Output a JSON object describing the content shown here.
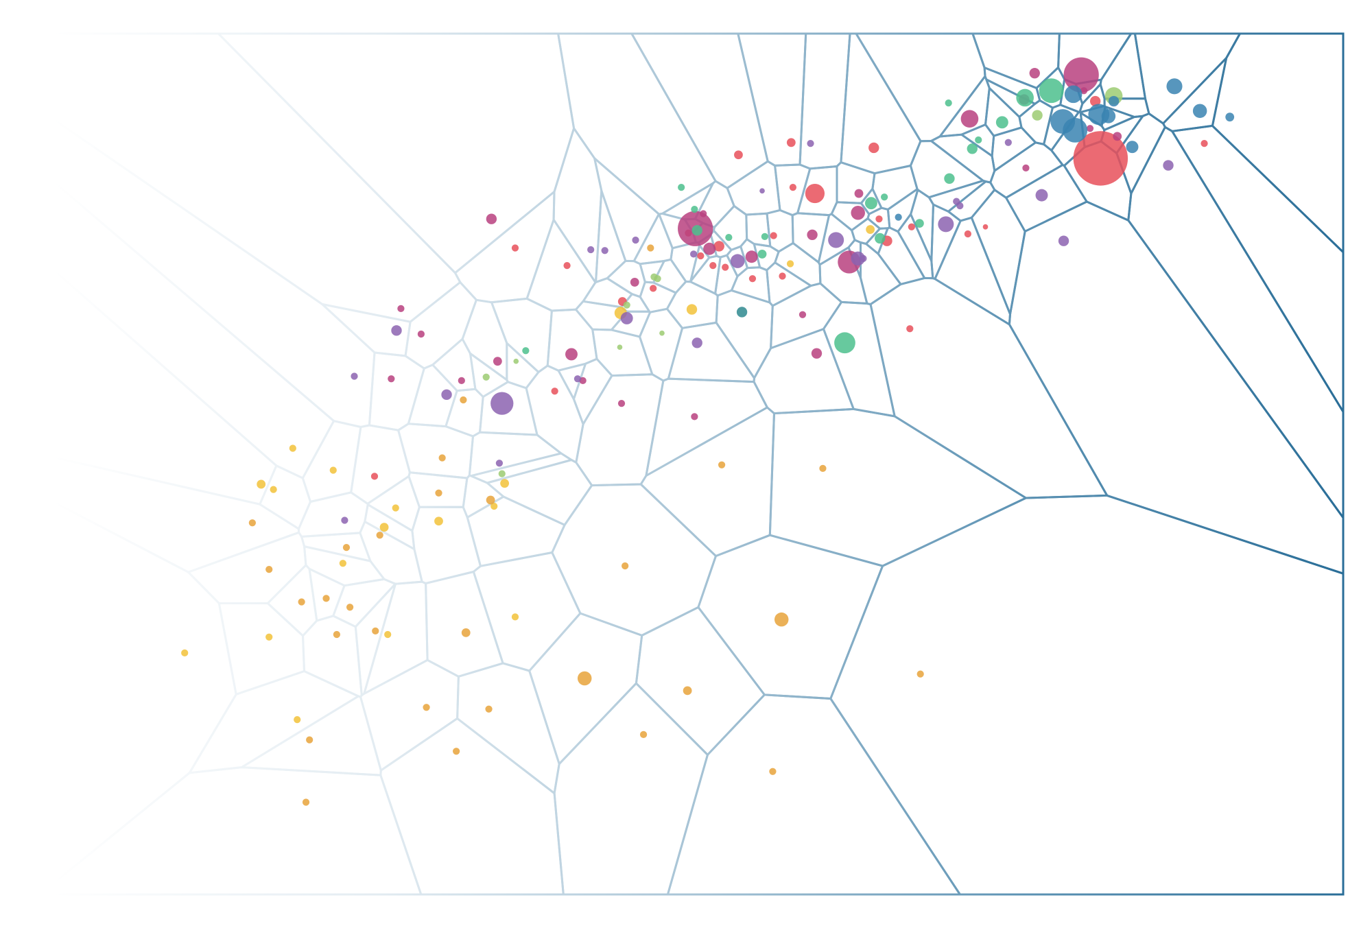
{
  "chart_data": {
    "type": "voronoi",
    "xlim": [
      0,
      1468
    ],
    "ylim": [
      0,
      980
    ],
    "series": [
      {
        "color": "#f2c23a",
        "x": [
          150,
          273,
          237,
          251,
          319,
          246,
          278,
          381,
          330,
          377,
          390,
          439,
          502,
          514,
          526,
          646,
          727,
          839,
          930
        ],
        "y": [
          275,
          508,
          467,
          461,
          483,
          293,
          199,
          296,
          377,
          418,
          440,
          425,
          442,
          468,
          316,
          662,
          666,
          718,
          757
        ],
        "sizes": [
          4,
          4,
          5,
          4,
          4,
          4,
          4,
          4,
          4,
          5,
          4,
          5,
          4,
          5,
          4,
          7,
          6,
          4,
          5
        ]
      },
      {
        "color": "#e8a33b",
        "x": [
          227,
          246,
          283,
          311,
          338,
          323,
          292,
          288,
          367,
          334,
          372,
          443,
          439,
          498,
          470,
          425,
          496,
          459,
          605,
          651,
          722,
          672,
          829,
          819,
          987,
          761,
          876,
          467,
          680
        ],
        "y": [
          423,
          370,
          333,
          337,
          327,
          296,
          176,
          105,
          300,
          395,
          409,
          497,
          457,
          449,
          298,
          213,
          211,
          163,
          246,
          374,
          232,
          182,
          313,
          140,
          251,
          489,
          485,
          563,
          736
        ],
        "sizes": [
          4,
          4,
          4,
          4,
          4,
          4,
          4,
          4,
          4,
          4,
          4,
          4,
          4,
          5,
          5,
          4,
          4,
          4,
          8,
          4,
          5,
          4,
          8,
          4,
          4,
          4,
          4,
          4,
          4
        ]
      },
      {
        "color": "#e8505b",
        "x": [
          366,
          526,
          571,
          585,
          683,
          648,
          723,
          758,
          737,
          751,
          765,
          820,
          796,
          830,
          780,
          840,
          842,
          867,
          934,
          940,
          949,
          977,
          975,
          1041,
          1061,
          1186,
          1192,
          1310
        ],
        "y": [
          476,
          736,
          573,
          716,
          690,
          675,
          753,
          738,
          727,
          716,
          714,
          750,
          701,
          704,
          842,
          856,
          805,
          798,
          850,
          769,
          744,
          760,
          644,
          752,
          760,
          903,
          838,
          855
        ],
        "sizes": [
          4,
          4,
          4,
          4,
          4,
          5,
          4,
          6,
          4,
          4,
          4,
          4,
          4,
          4,
          5,
          5,
          4,
          11,
          6,
          4,
          6,
          4,
          4,
          4,
          3,
          6,
          31,
          4
        ]
      },
      {
        "color": "#b8417f",
        "x": [
          385,
          396,
          419,
          465,
          506,
          499,
          590,
          603,
          647,
          730,
          662,
          740,
          731,
          747,
          795,
          853,
          869,
          864,
          906,
          917,
          916,
          1043,
          1107,
          1117,
          1105,
          1170,
          1173,
          1180,
          1211
        ],
        "y": [
          587,
          667,
          638,
          585,
          607,
          769,
          615,
          585,
          559,
          544,
          697,
          775,
          758,
          735,
          726,
          660,
          616,
          751,
          720,
          798,
          776,
          883,
          827,
          935,
          905,
          933,
          915,
          872,
          863
        ],
        "sizes": [
          4,
          4,
          4,
          4,
          5,
          6,
          7,
          4,
          4,
          4,
          5,
          4,
          20,
          7,
          7,
          4,
          6,
          6,
          13,
          5,
          8,
          10,
          4,
          6,
          6,
          20,
          4,
          4,
          5
        ]
      },
      {
        "color": "#8c63b0",
        "x": [
          332,
          508,
          343,
          391,
          448,
          511,
          597,
          733,
          612,
          628,
          663,
          653,
          729,
          779,
          807,
          862,
          891,
          916,
          922,
          1016,
          1028,
          1032,
          1087,
          1125,
          1150,
          1269
        ],
        "y": [
          426,
          491,
          590,
          642,
          569,
          559,
          587,
          628,
          734,
          733,
          745,
          656,
          729,
          721,
          801,
          855,
          745,
          724,
          724,
          763,
          789,
          784,
          856,
          796,
          744,
          830
        ],
        "sizes": [
          4,
          4,
          4,
          6,
          6,
          13,
          4,
          6,
          4,
          4,
          4,
          7,
          4,
          8,
          3,
          4,
          9,
          8,
          4,
          9,
          4,
          4,
          4,
          7,
          6,
          6
        ]
      },
      {
        "color": "#4cbf8d",
        "x": [
          538,
          715,
          730,
          733,
          769,
          807,
          810,
          901,
          931,
          946,
          941,
          986,
          1020,
          1019,
          1053,
          1046,
          1080,
          1106,
          1136
        ],
        "y": [
          619,
          805,
          780,
          756,
          748,
          729,
          749,
          628,
          787,
          794,
          747,
          764,
          815,
          901,
          859,
          849,
          879,
          907,
          915
        ],
        "sizes": [
          4,
          4,
          4,
          6,
          4,
          5,
          4,
          12,
          7,
          4,
          6,
          5,
          6,
          4,
          4,
          6,
          7,
          10,
          14
        ]
      },
      {
        "color": "#9ccb72",
        "x": [
          511,
          493,
          527,
          645,
          693,
          684,
          688,
          653,
          1120,
          1207
        ],
        "y": [
          479,
          589,
          607,
          623,
          639,
          703,
          701,
          671,
          887,
          909
        ],
        "sizes": [
          4,
          4,
          3,
          3,
          3,
          4,
          4,
          4,
          6,
          10
        ]
      },
      {
        "color": "#3a84b1",
        "x": [
          962,
          1161,
          1207,
          1190,
          1201,
          1149,
          1163,
          1228,
          1276,
          1305,
          1339
        ],
        "y": [
          771,
          911,
          903,
          888,
          886,
          880,
          870,
          851,
          920,
          892,
          885
        ],
        "sizes": [
          4,
          10,
          6,
          12,
          8,
          14,
          14,
          7,
          9,
          8,
          5
        ]
      },
      {
        "color": "#2f8a8f",
        "x": [
          784
        ],
        "y": [
          663
        ],
        "sizes": [
          6
        ]
      }
    ]
  }
}
